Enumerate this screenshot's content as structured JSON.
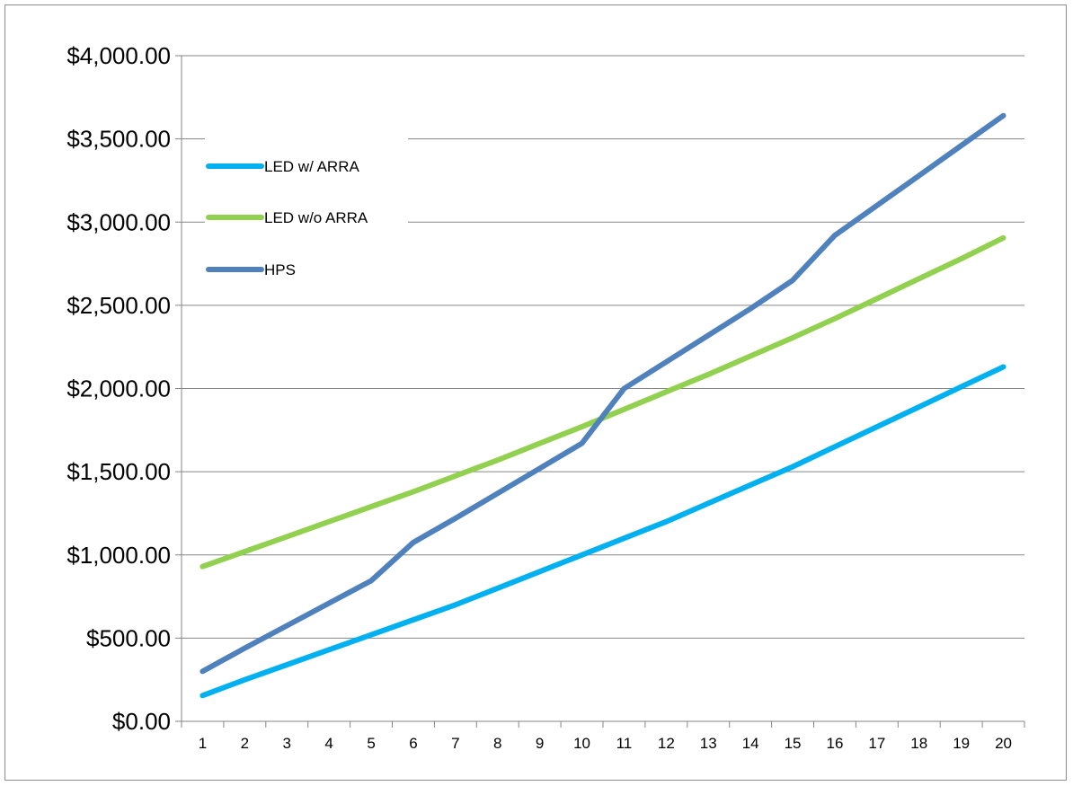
{
  "chart_data": {
    "type": "line",
    "title": "",
    "xlabel": "",
    "ylabel": "",
    "x": [
      1,
      2,
      3,
      4,
      5,
      6,
      7,
      8,
      9,
      10,
      11,
      12,
      13,
      14,
      15,
      16,
      17,
      18,
      19,
      20
    ],
    "ylim": [
      0,
      4000
    ],
    "ytick_step": 500,
    "yticks": [
      "$0.00",
      "$500.00",
      "$1,000.00",
      "$1,500.00",
      "$2,000.00",
      "$2,500.00",
      "$3,000.00",
      "$3,500.00",
      "$4,000.00"
    ],
    "grid": "horizontal",
    "legend_position": "top-left",
    "series": [
      {
        "name": "LED w/ ARRA",
        "color": "#00b0f0",
        "values": [
          155,
          250,
          340,
          430,
          520,
          610,
          700,
          800,
          900,
          1000,
          1100,
          1200,
          1310,
          1420,
          1530,
          1650,
          1770,
          1890,
          2010,
          2130
        ]
      },
      {
        "name": "LED w/o ARRA",
        "color": "#92d050",
        "values": [
          930,
          1020,
          1110,
          1200,
          1290,
          1380,
          1475,
          1570,
          1670,
          1770,
          1875,
          1980,
          2085,
          2195,
          2305,
          2420,
          2540,
          2660,
          2780,
          2905
        ]
      },
      {
        "name": "HPS",
        "color": "#4f81bd",
        "values": [
          300,
          440,
          575,
          710,
          845,
          1075,
          1220,
          1370,
          1520,
          1670,
          2000,
          2160,
          2320,
          2480,
          2650,
          2920,
          3100,
          3280,
          3460,
          3640
        ]
      }
    ]
  }
}
